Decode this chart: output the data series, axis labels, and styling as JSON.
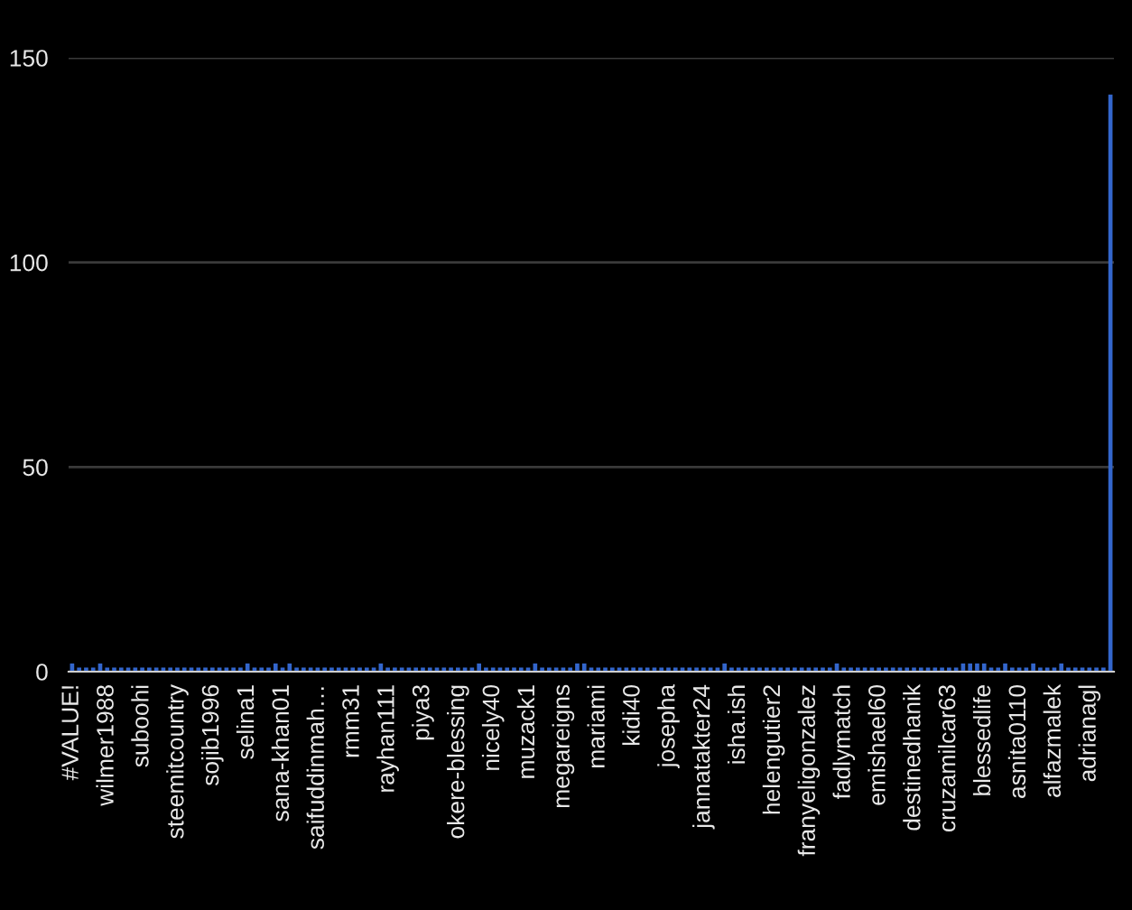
{
  "chart_data": {
    "type": "bar",
    "categories": [
      "#VALUE!",
      null,
      null,
      null,
      null,
      "wilmer1988",
      null,
      null,
      null,
      null,
      "suboohi",
      null,
      null,
      null,
      null,
      "steemitcountry",
      null,
      null,
      null,
      null,
      "sojib1996",
      null,
      null,
      null,
      null,
      "selina1",
      null,
      null,
      null,
      null,
      "sana-khan01",
      null,
      null,
      null,
      null,
      "saifuddinmah…",
      null,
      null,
      null,
      null,
      "rmm31",
      null,
      null,
      null,
      null,
      "rayhan111",
      null,
      null,
      null,
      null,
      "piya3",
      null,
      null,
      null,
      null,
      "okere-blessing",
      null,
      null,
      null,
      null,
      "nicely40",
      null,
      null,
      null,
      null,
      "muzack1",
      null,
      null,
      null,
      null,
      "megareigns",
      null,
      null,
      null,
      null,
      "mariami",
      null,
      null,
      null,
      null,
      "kidi40",
      null,
      null,
      null,
      null,
      "josepha",
      null,
      null,
      null,
      null,
      "jannatakter24",
      null,
      null,
      null,
      null,
      "isha.ish",
      null,
      null,
      null,
      null,
      "helengutier2",
      null,
      null,
      null,
      null,
      "franyeligonzalez",
      null,
      null,
      null,
      null,
      "fadlymatch",
      null,
      null,
      null,
      null,
      "emishael60",
      null,
      null,
      null,
      null,
      "destinedhanik",
      null,
      null,
      null,
      null,
      "cruzamilcar63",
      null,
      null,
      null,
      null,
      "blessedlife",
      null,
      null,
      null,
      null,
      "asnita0110",
      null,
      null,
      null,
      null,
      "alfazmalek",
      null,
      null,
      null,
      null,
      "adrianagl",
      null,
      null,
      null
    ],
    "values": [
      2,
      1,
      1,
      1,
      2,
      1,
      1,
      1,
      1,
      1,
      1,
      1,
      1,
      1,
      1,
      1,
      1,
      1,
      1,
      1,
      1,
      1,
      1,
      1,
      1,
      2,
      1,
      1,
      1,
      2,
      1,
      2,
      1,
      1,
      1,
      1,
      1,
      1,
      1,
      1,
      1,
      1,
      1,
      1,
      2,
      1,
      1,
      1,
      1,
      1,
      1,
      1,
      1,
      1,
      1,
      1,
      1,
      1,
      2,
      1,
      1,
      1,
      1,
      1,
      1,
      1,
      2,
      1,
      1,
      1,
      1,
      1,
      2,
      2,
      1,
      1,
      1,
      1,
      1,
      1,
      1,
      1,
      1,
      1,
      1,
      1,
      1,
      1,
      1,
      1,
      1,
      1,
      1,
      2,
      1,
      1,
      1,
      1,
      1,
      1,
      1,
      1,
      1,
      1,
      1,
      1,
      1,
      1,
      1,
      2,
      1,
      1,
      1,
      1,
      1,
      1,
      1,
      1,
      1,
      1,
      1,
      1,
      1,
      1,
      1,
      1,
      1,
      2,
      2,
      2,
      2,
      1,
      1,
      2,
      1,
      1,
      1,
      2,
      1,
      1,
      1,
      2,
      1,
      1,
      1,
      1,
      1,
      1,
      141
    ],
    "color": "#3366cc",
    "ylim": [
      0,
      150
    ],
    "yticks": [
      0,
      50,
      100,
      150
    ],
    "grid": "y"
  }
}
